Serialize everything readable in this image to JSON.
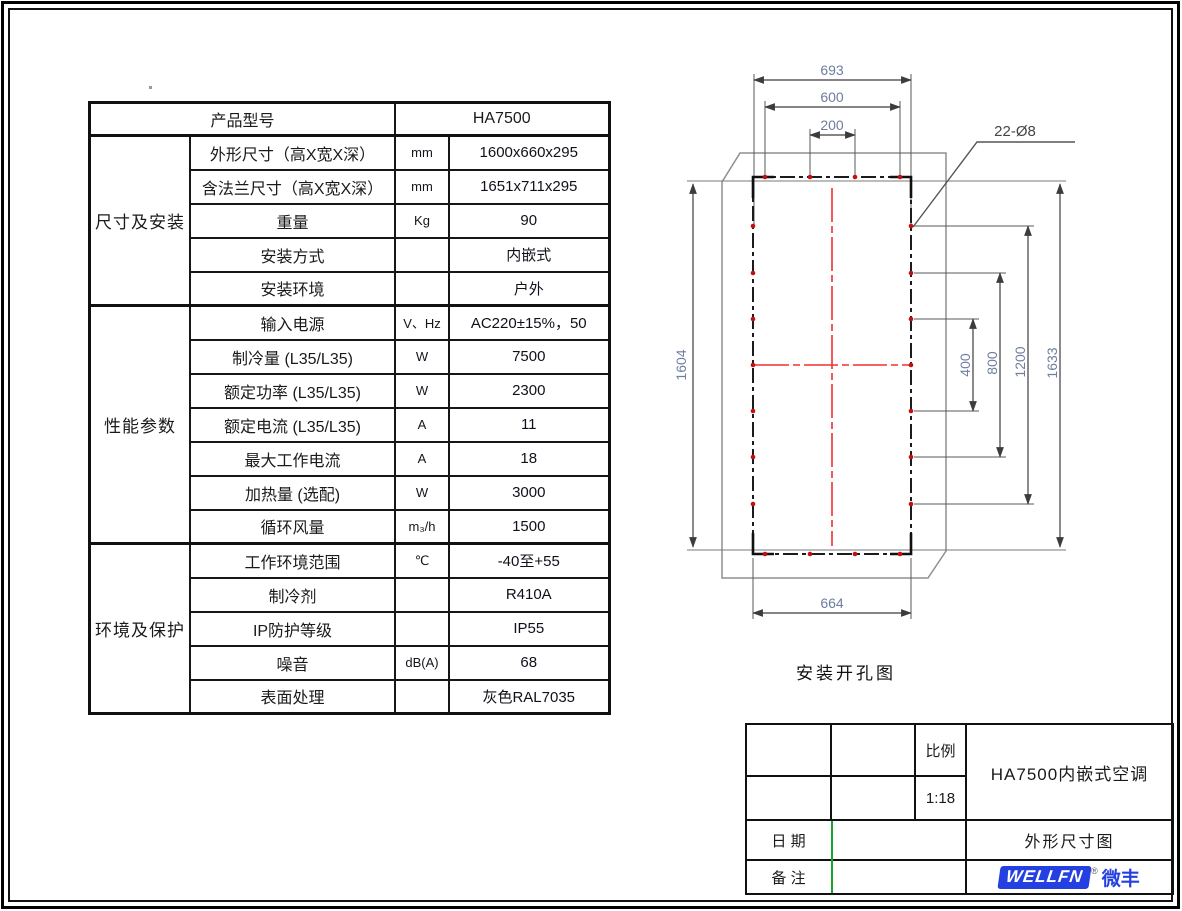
{
  "spec_table": {
    "header_label": "产品型号",
    "header_value": "HA7500",
    "groups": [
      {
        "name": "尺寸及安装",
        "rows": [
          {
            "label": "外形尺寸（高X宽X深）",
            "unit": "mm",
            "value": "1600x660x295"
          },
          {
            "label": "含法兰尺寸（高X宽X深）",
            "unit": "mm",
            "value": "1651x711x295"
          },
          {
            "label": "重量",
            "unit": "Kg",
            "value": "90"
          },
          {
            "label": "安装方式",
            "unit": "",
            "value": "内嵌式"
          },
          {
            "label": "安装环境",
            "unit": "",
            "value": "户外"
          }
        ]
      },
      {
        "name": "性能参数",
        "rows": [
          {
            "label": "输入电源",
            "unit": "V、Hz",
            "value": "AC220±15%，50"
          },
          {
            "label": "制冷量 (L35/L35)",
            "unit": "W",
            "value": "7500"
          },
          {
            "label": "额定功率 (L35/L35)",
            "unit": "W",
            "value": "2300"
          },
          {
            "label": "额定电流 (L35/L35)",
            "unit": "A",
            "value": "11"
          },
          {
            "label": "最大工作电流",
            "unit": "A",
            "value": "18"
          },
          {
            "label": "加热量 (选配)",
            "unit": "W",
            "value": "3000"
          },
          {
            "label": "循环风量",
            "unit": "m₃/h",
            "value": "1500"
          }
        ]
      },
      {
        "name": "环境及保护",
        "rows": [
          {
            "label": "工作环境范围",
            "unit": "℃",
            "value": "-40至+55"
          },
          {
            "label": "制冷剂",
            "unit": "",
            "value": "R410A"
          },
          {
            "label": "IP防护等级",
            "unit": "",
            "value": "IP55"
          },
          {
            "label": "噪音",
            "unit": "dB(A)",
            "value": "68"
          },
          {
            "label": "表面处理",
            "unit": "",
            "value": "灰色RAL7035"
          }
        ]
      }
    ]
  },
  "drawing": {
    "dim_top_outer": "693",
    "dim_top_mid": "600",
    "dim_top_inner": "200",
    "dim_left": "1604",
    "dim_right_1": "400",
    "dim_right_2": "800",
    "dim_right_3": "1200",
    "dim_right_4": "1633",
    "dim_bottom": "664",
    "holes_label": "22-Ø8",
    "caption": "安装开孔图"
  },
  "title_block": {
    "scale_label": "比例",
    "scale_value": "1:18",
    "product_title": "HA7500内嵌式空调",
    "date_label": "日 期",
    "drawing_name": "外形尺寸图",
    "remark_label": "备 注",
    "brand_en": "WELLFN",
    "reg_mark": "®",
    "brand_cn": "微丰",
    "brand_color": "#2540e0",
    "accent_green": "#18a42a"
  }
}
